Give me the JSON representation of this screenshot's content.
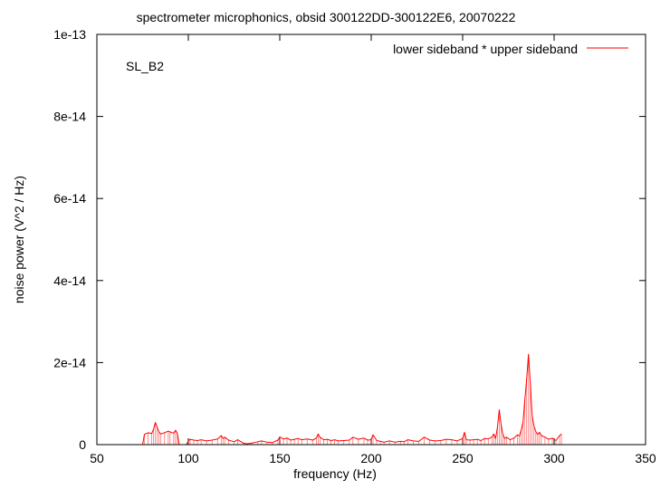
{
  "chart_data": {
    "type": "line",
    "title": "spectrometer microphonics, obsid 300122DD-300122E6, 20070222",
    "xlabel": "frequency (Hz)",
    "ylabel": "noise power (V^2 / Hz)",
    "xlim": [
      50,
      350
    ],
    "ylim": [
      0,
      1e-13
    ],
    "xticks": [
      50,
      100,
      150,
      200,
      250,
      300,
      350
    ],
    "xtick_labels": [
      "50",
      "100",
      "150",
      "200",
      "250",
      "300",
      "350"
    ],
    "yticks": [
      0,
      2e-14,
      4e-14,
      6e-14,
      8e-14,
      1e-13
    ],
    "ytick_labels": [
      "0",
      "2e-14",
      "4e-14",
      "6e-14",
      "8e-14",
      "1e-13"
    ],
    "grid": false,
    "legend_position": "top-right",
    "annotation": "SL_B2",
    "series": [
      {
        "name": "lower sideband * upper sideband",
        "color": "#ff0000",
        "x": [
          75,
          76,
          78,
          80,
          81,
          82,
          83,
          84,
          85,
          87,
          89,
          90,
          92,
          93,
          94,
          95,
          97,
          99,
          100,
          101,
          103,
          105,
          107,
          110,
          113,
          116,
          118,
          119,
          120,
          122,
          125,
          127,
          130,
          132,
          135,
          138,
          140,
          143,
          146,
          149,
          150,
          152,
          154,
          156,
          158,
          160,
          162,
          165,
          168,
          170,
          171,
          172,
          174,
          176,
          178,
          180,
          182,
          185,
          188,
          190,
          193,
          196,
          198,
          200,
          201,
          203,
          205,
          207,
          210,
          213,
          216,
          218,
          220,
          223,
          226,
          229,
          232,
          235,
          238,
          241,
          244,
          247,
          250,
          251,
          252,
          254,
          256,
          258,
          260,
          262,
          264,
          266,
          267,
          268,
          269,
          270,
          271,
          272,
          273,
          274,
          276,
          278,
          280,
          281,
          282,
          283,
          284,
          285,
          286,
          287,
          288,
          289,
          290,
          291,
          292,
          293,
          295,
          297,
          299,
          301,
          303,
          304
        ],
        "values": [
          0,
          2.5e-15,
          2.9e-15,
          2.7e-15,
          3.8e-15,
          5.4e-15,
          4.2e-15,
          3e-15,
          2.6e-15,
          2.9e-15,
          3.3e-15,
          3.1e-15,
          2.8e-15,
          3.5e-15,
          2.7e-15,
          0,
          0,
          0,
          9e-16,
          1.3e-15,
          1.1e-15,
          1e-15,
          1.2e-15,
          9e-16,
          1.1e-15,
          1.4e-15,
          2.2e-15,
          1.5e-15,
          1.8e-15,
          1.1e-15,
          7e-16,
          1.2e-15,
          4e-16,
          2e-16,
          4e-16,
          7e-16,
          9e-16,
          6e-16,
          5e-16,
          1.1e-15,
          1.9e-15,
          1.4e-15,
          1.6e-15,
          1.1e-15,
          1.3e-15,
          1.5e-15,
          1.2e-15,
          1.4e-15,
          1.1e-15,
          1.6e-15,
          2.6e-15,
          1.8e-15,
          1.2e-15,
          1.3e-15,
          1e-15,
          1.2e-15,
          9e-16,
          1e-15,
          1.1e-15,
          1.8e-15,
          1.3e-15,
          1.6e-15,
          1.1e-15,
          1.2e-15,
          2.4e-15,
          1e-15,
          8e-16,
          6e-16,
          9e-16,
          6e-16,
          8e-16,
          7e-16,
          1.2e-15,
          9e-16,
          8e-16,
          1.8e-15,
          1.1e-15,
          9e-16,
          1e-15,
          1.3e-15,
          1.2e-15,
          9e-16,
          1.5e-15,
          3e-15,
          1.2e-15,
          1.1e-15,
          1.2e-15,
          1.3e-15,
          1e-15,
          1.5e-15,
          1.4e-15,
          1.8e-15,
          2.6e-15,
          1.5e-15,
          4.2e-15,
          8.5e-15,
          5e-15,
          2.5e-15,
          1.5e-15,
          1.8e-15,
          1.2e-15,
          1.6e-15,
          2.4e-15,
          2.1e-15,
          3.5e-15,
          5.5e-15,
          1.1e-14,
          1.6e-14,
          2.2e-14,
          1.5e-14,
          7e-15,
          4.5e-15,
          3.2e-15,
          2.5e-15,
          3e-15,
          2.2e-15,
          1.8e-15,
          1.3e-15,
          1.6e-15,
          1e-15,
          2.2e-15,
          2.6e-15
        ]
      }
    ]
  }
}
